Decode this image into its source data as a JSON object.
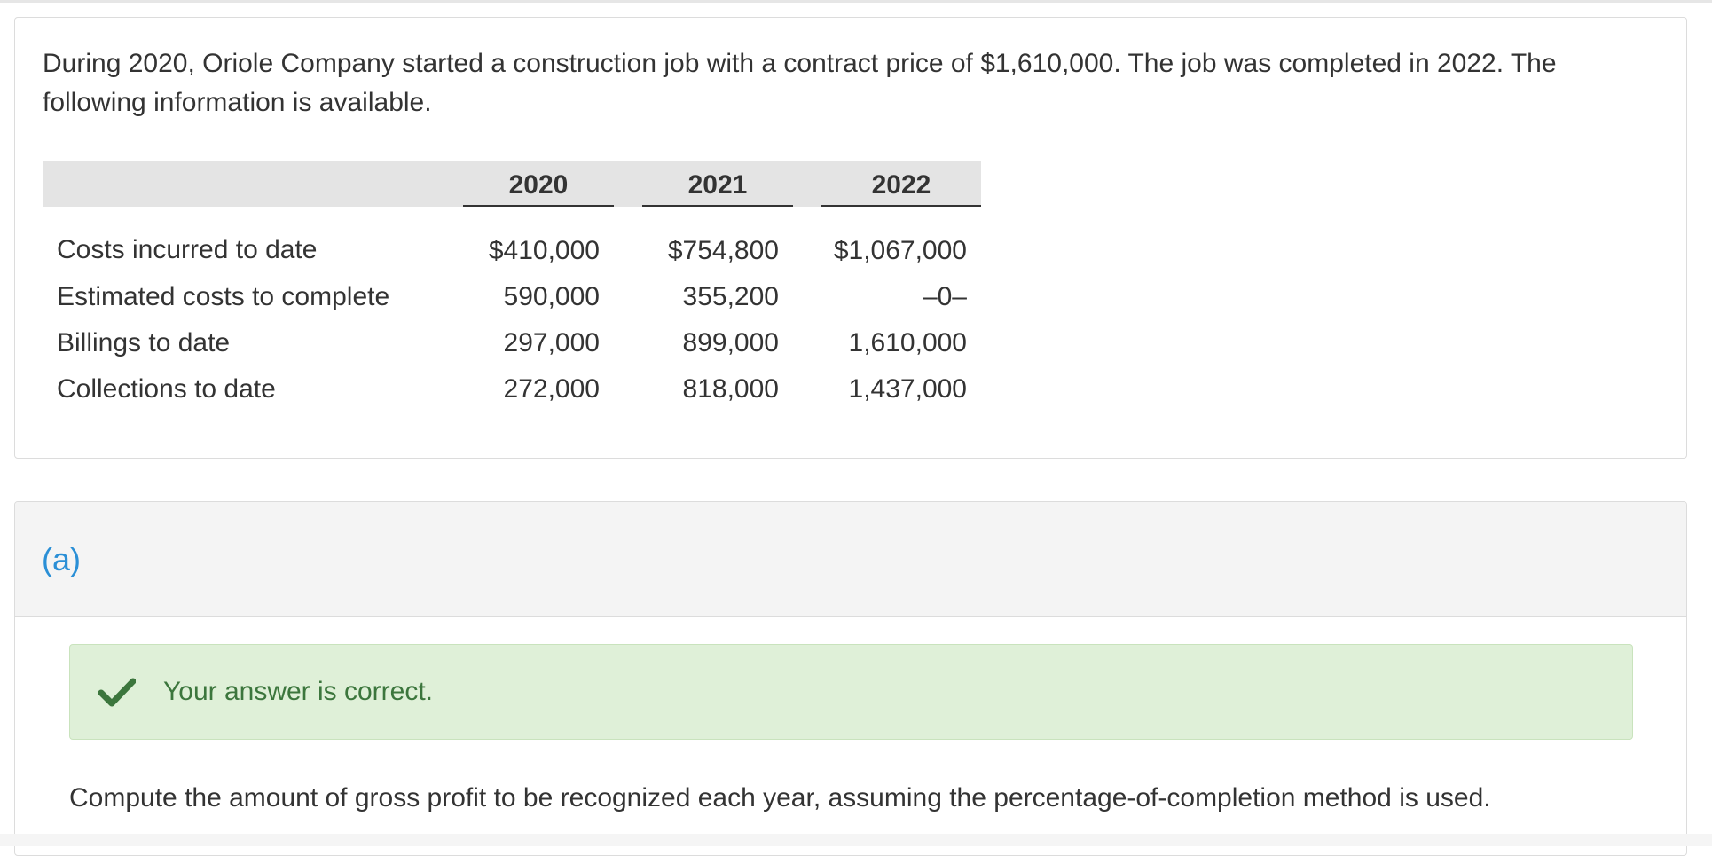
{
  "problem": {
    "intro": "During 2020, Oriole Company started a construction job with a contract price of $1,610,000. The job was completed in 2022. The following information is available.",
    "table": {
      "years": [
        "2020",
        "2021",
        "2022"
      ],
      "rows": [
        {
          "label": "Costs incurred to date",
          "values": [
            "$410,000",
            "$754,800",
            "$1,067,000"
          ]
        },
        {
          "label": "Estimated costs to complete",
          "values": [
            "590,000",
            "355,200",
            "–0–"
          ]
        },
        {
          "label": "Billings to date",
          "values": [
            "297,000",
            "899,000",
            "1,610,000"
          ]
        },
        {
          "label": "Collections to date",
          "values": [
            "272,000",
            "818,000",
            "1,437,000"
          ]
        }
      ]
    }
  },
  "part": {
    "label": "(a)",
    "feedback": {
      "icon": "check-icon",
      "text": "Your answer is correct.",
      "color": "#3c763d",
      "background": "#dff0d8"
    },
    "instruction": "Compute the amount of gross profit to be recognized each year, assuming the percentage-of-completion method is used."
  },
  "colors": {
    "part_label": "#2a8fd6",
    "header_background": "#e4e4e4"
  }
}
